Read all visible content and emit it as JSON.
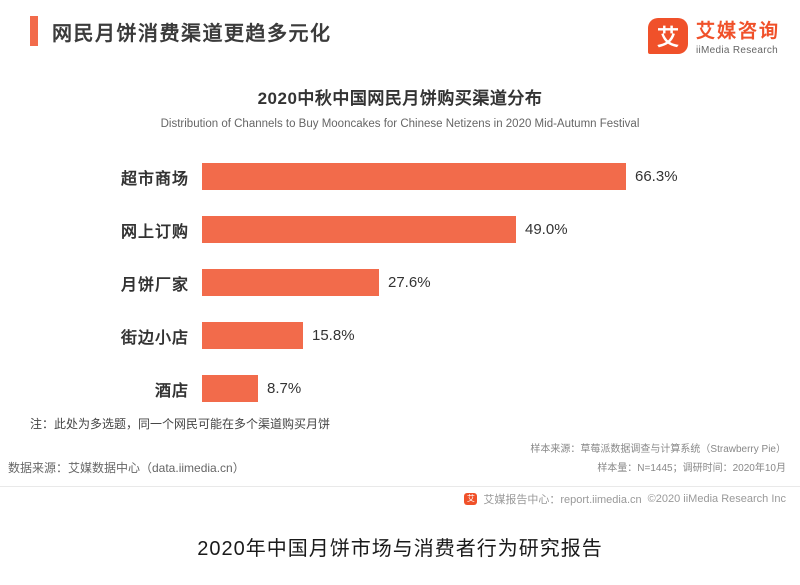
{
  "header": {
    "title": "网民月饼消费渠道更趋多元化"
  },
  "logo": {
    "icon_char": "艾",
    "name_cn": "艾媒咨询",
    "name_en": "iiMedia Research"
  },
  "chart_data": {
    "type": "bar",
    "orientation": "horizontal",
    "title": "2020中秋中国网民月饼购买渠道分布",
    "subtitle": "Distribution of Channels to Buy Mooncakes for Chinese Netizens in 2020 Mid-Autumn Festival",
    "categories": [
      "超市商场",
      "网上订购",
      "月饼厂家",
      "街边小店",
      "酒店"
    ],
    "values": [
      66.3,
      49.0,
      27.6,
      15.8,
      8.7
    ],
    "value_labels": [
      "66.3%",
      "49.0%",
      "27.6%",
      "15.8%",
      "8.7%"
    ],
    "xlim": [
      0,
      100
    ],
    "grid": false,
    "legend": "none",
    "bar_color": "#F26B4B"
  },
  "notes": {
    "multi_select_note": "注：此处为多选题，同一个网民可能在多个渠道购买月饼",
    "data_source": "数据来源：艾媒数据中心（data.iimedia.cn）",
    "sample_source": "样本来源：草莓派数据调查与计算系统（Strawberry Pie）",
    "sample_size": "样本量：N=1445；调研时间：2020年10月"
  },
  "footer": {
    "report_center": "艾媒报告中心：report.iimedia.cn",
    "copyright": "©2020 iiMedia Research Inc"
  },
  "caption": "2020年中国月饼市场与消费者行为研究报告",
  "colors": {
    "accent_orange": "#F26B4B",
    "logo_orange": "#F0512A",
    "title_text": "#3B3B3B"
  }
}
